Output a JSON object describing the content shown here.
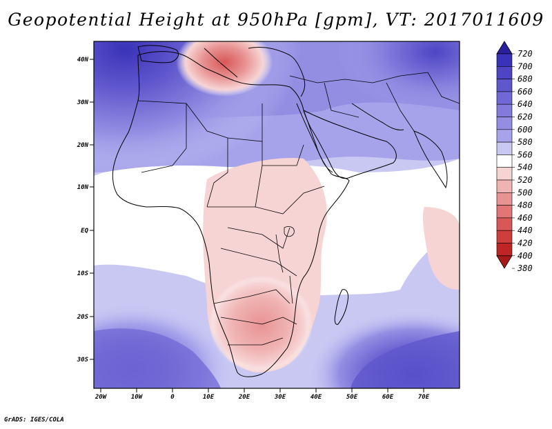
{
  "title": "Geopotential Height at 950hPa [gpm], VT: 2017011609",
  "credit": "GrADS: IGES/COLA",
  "latitude_labels": [
    "40N",
    "30N",
    "20N",
    "10N",
    "EQ",
    "10S",
    "20S",
    "30S"
  ],
  "latitude_values": [
    40,
    30,
    20,
    10,
    0,
    -10,
    -20,
    -30
  ],
  "longitude_labels": [
    "20W",
    "10W",
    "0",
    "10E",
    "20E",
    "30E",
    "40E",
    "50E",
    "60E",
    "70E"
  ],
  "longitude_values": [
    -20,
    -10,
    0,
    10,
    20,
    30,
    40,
    50,
    60,
    70
  ],
  "map_extent": {
    "lon_min": -22,
    "lon_max": 80,
    "lat_min": -37,
    "lat_max": 45
  },
  "colorbar": {
    "levels": [
      "720",
      "700",
      "680",
      "660",
      "640",
      "620",
      "600",
      "580",
      "560",
      "540",
      "520",
      "500",
      "480",
      "460",
      "440",
      "420",
      "400",
      "380"
    ],
    "colors": [
      "#2a1f9e",
      "#3a32b8",
      "#4d45c4",
      "#5f57cc",
      "#7068d4",
      "#827bdc",
      "#948ee3",
      "#a7a3eb",
      "#c9c8f3",
      "#ffffff",
      "#f7d4d4",
      "#f0b3b3",
      "#e89393",
      "#e27575",
      "#d85757",
      "#cf3d3d",
      "#be2626",
      "#a81a1a"
    ]
  },
  "highlights": {
    "mediterranean_low_center": "south of Italy",
    "southern_africa_low": "Botswana region",
    "high_regions": [
      "NW Atlantic",
      "South Atlantic",
      "South Indian Ocean"
    ]
  }
}
